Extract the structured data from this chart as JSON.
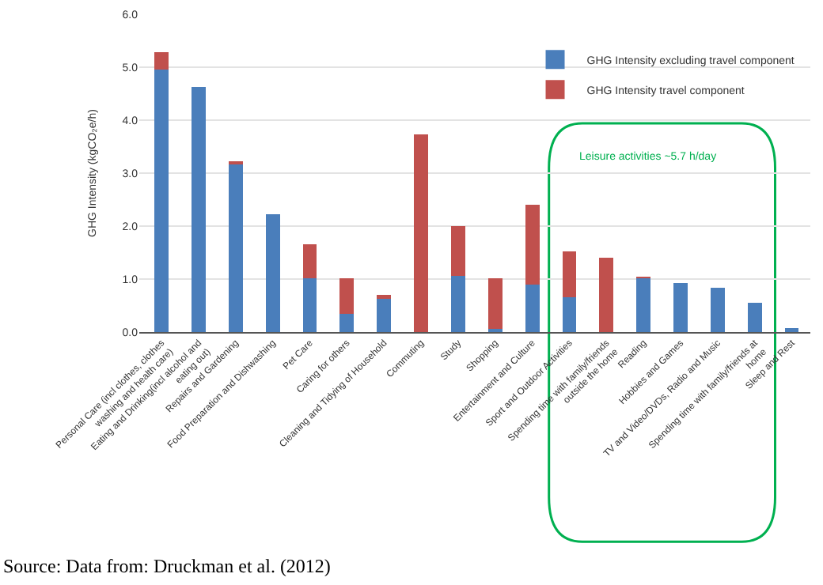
{
  "chart_data": {
    "type": "bar",
    "stacked": true,
    "ylabel": "GHG Intensity (kgCO₂e/h)",
    "categories": [
      "Personal Care (incl clothes, clothes washing and health care)",
      "Eating and Drinking(incl alcohol and eating out)",
      "Repairs and Gardening",
      "Food Preparation and Dishwashing",
      "Pet Care",
      "Caring for others",
      "Cleaning and Tidying of Household",
      "Commuting",
      "Study",
      "Shopping",
      "Entertainment and Culture",
      "Sport and Outdoor Activities",
      "Spending time with family/friends outside the home",
      "Reading",
      "Hobbies and Games",
      "TV and Video/DVDs, Radio and Music",
      "Spending time with family/friends at home",
      "Sleep and Rest"
    ],
    "series": [
      {
        "name": "GHG Intensity excluding travel component",
        "color": "#4a7ebb",
        "values": [
          4.95,
          4.62,
          3.17,
          2.22,
          1.02,
          0.34,
          0.63,
          0,
          1.06,
          0.06,
          0.89,
          0.65,
          0,
          1.02,
          0.93,
          0.84,
          0.55,
          0.08
        ]
      },
      {
        "name": "GHG Intensity travel component",
        "color": "#c0504d",
        "values": [
          0.33,
          0,
          0.03,
          0,
          0.63,
          0.68,
          0.07,
          3.73,
          0.94,
          0.96,
          1.51,
          0.87,
          1.41,
          0.02,
          0,
          0,
          0,
          0
        ]
      }
    ],
    "ylim": [
      0,
      6
    ],
    "yticks": [
      {
        "value": 0,
        "label": "0.0"
      },
      {
        "value": 1,
        "label": "1.0"
      },
      {
        "value": 2,
        "label": "2.0"
      },
      {
        "value": 3,
        "label": "3.0"
      },
      {
        "value": 4,
        "label": "4.0"
      },
      {
        "value": 5,
        "label": "5.0"
      },
      {
        "value": 6,
        "label": "6.0"
      }
    ],
    "grid": "y",
    "legend": "top right",
    "annotations": [
      "Leisure activities ~5.7 h/day",
      "Source: Data from: Druckman et al. (2012)"
    ]
  }
}
